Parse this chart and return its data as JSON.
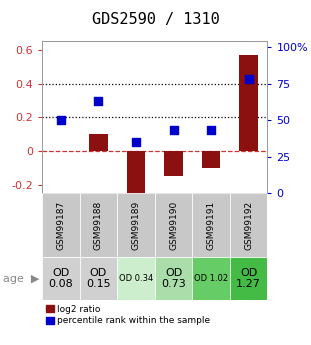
{
  "title": "GDS2590 / 1310",
  "samples": [
    "GSM99187",
    "GSM99188",
    "GSM99189",
    "GSM99190",
    "GSM99191",
    "GSM99192"
  ],
  "log2_ratio": [
    0.0,
    0.1,
    -0.25,
    -0.15,
    -0.1,
    0.57
  ],
  "percentile_rank": [
    0.5,
    0.63,
    0.35,
    0.43,
    0.43,
    0.78
  ],
  "bar_color": "#8B1010",
  "dot_color": "#0000CC",
  "ylim_left": [
    -0.25,
    0.65
  ],
  "ylim_right": [
    0.0,
    1.04
  ],
  "yticks_left": [
    -0.2,
    0.0,
    0.2,
    0.4,
    0.6
  ],
  "yticks_right": [
    0.0,
    0.25,
    0.5,
    0.75,
    1.0
  ],
  "ytick_labels_right": [
    "0",
    "25",
    "50",
    "75",
    "100%"
  ],
  "ytick_labels_left": [
    "-0.2",
    "0",
    "0.2",
    "0.4",
    "0.6"
  ],
  "age_labels": [
    "OD\n0.08",
    "OD\n0.15",
    "OD 0.34",
    "OD\n0.73",
    "OD 1.02",
    "OD\n1.27"
  ],
  "age_label_sizes": [
    8,
    8,
    6,
    8,
    6,
    8
  ],
  "age_bg_colors": [
    "#d0d0d0",
    "#d0d0d0",
    "#cceecc",
    "#aaddaa",
    "#66cc66",
    "#44bb44"
  ],
  "hline_y": [
    0.2,
    0.4
  ],
  "dashed_zero_color": "#cc3333",
  "bar_width": 0.5,
  "dot_size": 30,
  "title_fontsize": 11,
  "tick_fontsize": 8,
  "legend_label_log2": "log2 ratio",
  "legend_label_pct": "percentile rank within the sample",
  "sample_bg_color": "#c8c8c8"
}
